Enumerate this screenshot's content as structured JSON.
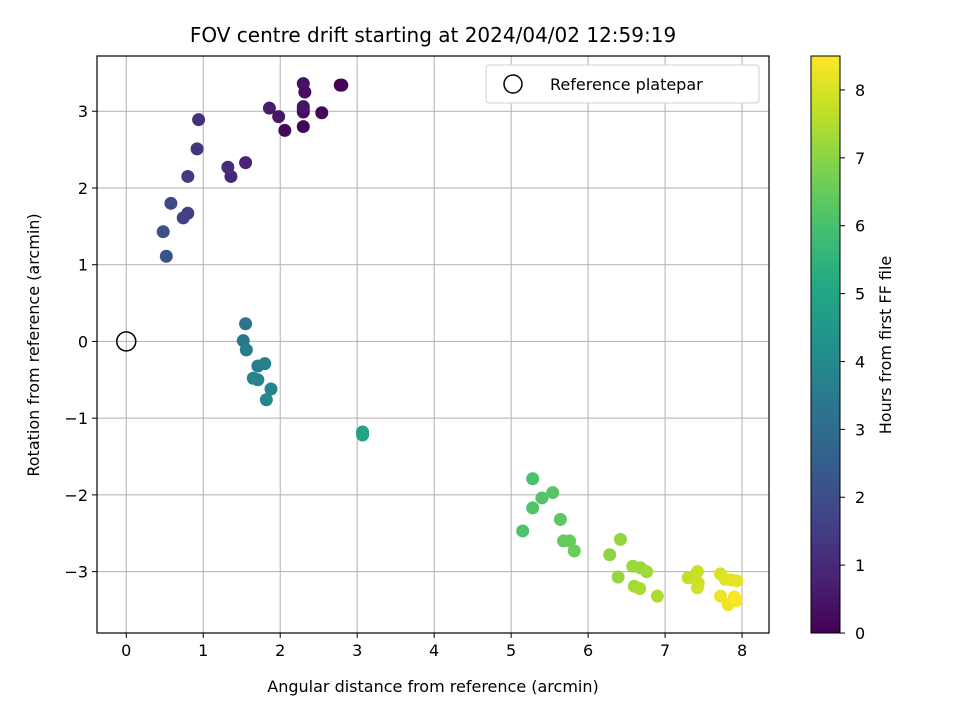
{
  "chart_data": {
    "type": "scatter",
    "title": "FOV centre drift starting at 2024/04/02 12:59:19",
    "xlabel": "Angular distance from reference (arcmin)",
    "ylabel": "Rotation from reference (arcmin)",
    "xlim": [
      -0.38,
      8.35
    ],
    "ylim": [
      -3.8,
      3.72
    ],
    "xticks": [
      0,
      1,
      2,
      3,
      4,
      5,
      6,
      7,
      8
    ],
    "yticks": [
      -3,
      -2,
      -1,
      0,
      1,
      2,
      3
    ],
    "grid": true,
    "legend": {
      "placement": "top-right",
      "entries": [
        "Reference platepar"
      ]
    },
    "reference_point": {
      "x": 0,
      "y": 0
    },
    "colorbar": {
      "label": "Hours from first FF file",
      "range": [
        0,
        8.5
      ],
      "ticks": [
        0,
        1,
        2,
        3,
        4,
        5,
        6,
        7,
        8
      ],
      "colormap": "viridis"
    },
    "series": [
      {
        "points": [
          {
            "x": 2.8,
            "y": 3.34,
            "c": 0.0
          },
          {
            "x": 2.78,
            "y": 3.34,
            "c": 0.05
          },
          {
            "x": 2.3,
            "y": 2.8,
            "c": 0.1
          },
          {
            "x": 2.06,
            "y": 2.75,
            "c": 0.15
          },
          {
            "x": 2.54,
            "y": 2.98,
            "c": 0.2
          },
          {
            "x": 2.3,
            "y": 3.03,
            "c": 0.25
          },
          {
            "x": 2.3,
            "y": 2.99,
            "c": 0.3
          },
          {
            "x": 2.32,
            "y": 3.25,
            "c": 0.35
          },
          {
            "x": 2.3,
            "y": 3.36,
            "c": 0.4
          },
          {
            "x": 2.3,
            "y": 3.06,
            "c": 0.45
          },
          {
            "x": 1.98,
            "y": 2.93,
            "c": 0.55
          },
          {
            "x": 1.86,
            "y": 3.04,
            "c": 0.65
          },
          {
            "x": 1.55,
            "y": 2.33,
            "c": 0.85
          },
          {
            "x": 1.36,
            "y": 2.15,
            "c": 0.95
          },
          {
            "x": 1.32,
            "y": 2.27,
            "c": 1.05
          },
          {
            "x": 0.94,
            "y": 2.89,
            "c": 1.15
          },
          {
            "x": 0.92,
            "y": 2.51,
            "c": 1.3
          },
          {
            "x": 0.8,
            "y": 2.15,
            "c": 1.4
          },
          {
            "x": 0.8,
            "y": 1.67,
            "c": 1.55
          },
          {
            "x": 0.74,
            "y": 1.61,
            "c": 1.65
          },
          {
            "x": 0.58,
            "y": 1.8,
            "c": 1.85
          },
          {
            "x": 0.48,
            "y": 1.43,
            "c": 2.0
          },
          {
            "x": 0.52,
            "y": 1.11,
            "c": 2.15
          },
          {
            "x": 1.55,
            "y": 0.23,
            "c": 3.2
          },
          {
            "x": 1.52,
            "y": 0.01,
            "c": 3.35
          },
          {
            "x": 1.56,
            "y": -0.11,
            "c": 3.5
          },
          {
            "x": 1.71,
            "y": -0.32,
            "c": 3.6
          },
          {
            "x": 1.8,
            "y": -0.29,
            "c": 3.7
          },
          {
            "x": 1.65,
            "y": -0.48,
            "c": 3.75
          },
          {
            "x": 1.71,
            "y": -0.5,
            "c": 3.8
          },
          {
            "x": 1.88,
            "y": -0.62,
            "c": 3.85
          },
          {
            "x": 1.82,
            "y": -0.76,
            "c": 3.9
          },
          {
            "x": 3.07,
            "y": -1.18,
            "c": 4.85
          },
          {
            "x": 3.07,
            "y": -1.22,
            "c": 4.9
          },
          {
            "x": 5.28,
            "y": -1.79,
            "c": 6.05
          },
          {
            "x": 5.15,
            "y": -2.47,
            "c": 6.1
          },
          {
            "x": 5.28,
            "y": -2.17,
            "c": 6.15
          },
          {
            "x": 5.4,
            "y": -2.04,
            "c": 6.2
          },
          {
            "x": 5.54,
            "y": -1.97,
            "c": 6.25
          },
          {
            "x": 5.64,
            "y": -2.32,
            "c": 6.35
          },
          {
            "x": 5.68,
            "y": -2.6,
            "c": 6.45
          },
          {
            "x": 5.76,
            "y": -2.6,
            "c": 6.5
          },
          {
            "x": 5.82,
            "y": -2.73,
            "c": 6.55
          },
          {
            "x": 6.28,
            "y": -2.78,
            "c": 7.05
          },
          {
            "x": 6.42,
            "y": -2.58,
            "c": 7.1
          },
          {
            "x": 6.39,
            "y": -3.07,
            "c": 7.15
          },
          {
            "x": 6.58,
            "y": -2.93,
            "c": 7.2
          },
          {
            "x": 6.68,
            "y": -2.95,
            "c": 7.25
          },
          {
            "x": 6.76,
            "y": -3.0,
            "c": 7.3
          },
          {
            "x": 6.6,
            "y": -3.19,
            "c": 7.35
          },
          {
            "x": 6.67,
            "y": -3.22,
            "c": 7.4
          },
          {
            "x": 6.9,
            "y": -3.32,
            "c": 7.45
          },
          {
            "x": 7.3,
            "y": -3.08,
            "c": 7.7
          },
          {
            "x": 7.38,
            "y": -3.08,
            "c": 7.75
          },
          {
            "x": 7.42,
            "y": -3.0,
            "c": 7.8
          },
          {
            "x": 7.43,
            "y": -3.15,
            "c": 7.85
          },
          {
            "x": 7.42,
            "y": -3.21,
            "c": 7.9
          },
          {
            "x": 7.72,
            "y": -3.03,
            "c": 8.0
          },
          {
            "x": 7.78,
            "y": -3.1,
            "c": 8.1
          },
          {
            "x": 7.86,
            "y": -3.11,
            "c": 8.15
          },
          {
            "x": 7.93,
            "y": -3.12,
            "c": 8.2
          },
          {
            "x": 7.72,
            "y": -3.32,
            "c": 8.25
          },
          {
            "x": 7.82,
            "y": -3.43,
            "c": 8.3
          },
          {
            "x": 7.9,
            "y": -3.33,
            "c": 8.35
          },
          {
            "x": 7.92,
            "y": -3.38,
            "c": 8.45
          }
        ]
      }
    ]
  }
}
